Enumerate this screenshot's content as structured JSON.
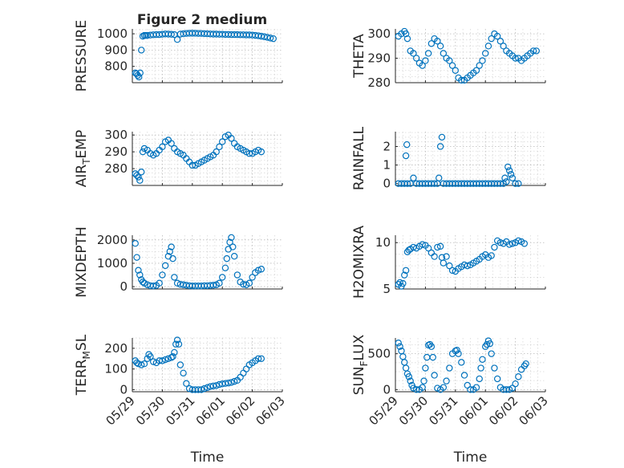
{
  "figure": {
    "title": "Figure 2 medium",
    "marker_color": "#0072bd",
    "axis_color": "#262626",
    "grid": true
  },
  "chart_data": [
    {
      "type": "scatter",
      "title": "Figure 2 medium",
      "ylabel": "PRESSURE",
      "xlabel": "",
      "xlim": [
        0,
        5
      ],
      "xticks": [
        0,
        1,
        2,
        3,
        4,
        5
      ],
      "xticklabels": [
        "05/29",
        "05/30",
        "05/31",
        "06/01",
        "06/02",
        "06/03"
      ],
      "ylim": [
        700,
        1030
      ],
      "yticks": [
        800,
        900,
        1000
      ],
      "yticklabels": [
        "800",
        "900",
        "1000"
      ],
      "series": [
        {
          "x": [
            0.1,
            0.14,
            0.18,
            0.22,
            0.26,
            0.3,
            0.35,
            0.4,
            0.45,
            0.5,
            0.6,
            0.7,
            0.8,
            0.9,
            1.0,
            1.1,
            1.2,
            1.3,
            1.4,
            1.5,
            1.6,
            1.7,
            1.8,
            1.9,
            2.0,
            2.1,
            2.2,
            2.3,
            2.4,
            2.5,
            2.6,
            2.7,
            2.8,
            2.9,
            3.0,
            3.1,
            3.2,
            3.3,
            3.4,
            3.5,
            3.6,
            3.7,
            3.8,
            3.9,
            4.0,
            4.1,
            4.2,
            4.3,
            4.4,
            4.5,
            4.6,
            4.7
          ],
          "y": [
            760,
            755,
            745,
            735,
            760,
            900,
            985,
            990,
            990,
            990,
            992,
            994,
            995,
            995,
            997,
            999,
            998,
            997,
            995,
            965,
            998,
            1000,
            1002,
            1003,
            1003,
            1003,
            1002,
            1002,
            1001,
            1000,
            999,
            998,
            998,
            997,
            997,
            996,
            996,
            995,
            995,
            995,
            994,
            994,
            993,
            993,
            992,
            990,
            988,
            985,
            982,
            978,
            974,
            970
          ]
        }
      ]
    },
    {
      "type": "scatter",
      "ylabel": "THETA",
      "xlabel": "",
      "xlim": [
        0,
        5
      ],
      "xticks": [
        0,
        1,
        2,
        3,
        4,
        5
      ],
      "xticklabels": [
        "05/29",
        "05/30",
        "05/31",
        "06/01",
        "06/02",
        "06/03"
      ],
      "ylim": [
        280,
        302
      ],
      "yticks": [
        280,
        290,
        300
      ],
      "yticklabels": [
        "280",
        "290",
        "300"
      ],
      "series": [
        {
          "x": [
            0.1,
            0.2,
            0.3,
            0.35,
            0.4,
            0.5,
            0.6,
            0.7,
            0.8,
            0.9,
            1.0,
            1.1,
            1.2,
            1.3,
            1.4,
            1.5,
            1.6,
            1.7,
            1.8,
            1.9,
            2.0,
            2.1,
            2.2,
            2.3,
            2.4,
            2.5,
            2.6,
            2.7,
            2.8,
            2.9,
            3.0,
            3.1,
            3.2,
            3.3,
            3.4,
            3.5,
            3.6,
            3.7,
            3.8,
            3.9,
            4.0,
            4.1,
            4.2,
            4.3,
            4.4,
            4.5,
            4.6,
            4.7
          ],
          "y": [
            299,
            300,
            301,
            300,
            298,
            293,
            292,
            290,
            288,
            287,
            289,
            292,
            296,
            298,
            297,
            295,
            292,
            290,
            289,
            287,
            285,
            282,
            281,
            281,
            282,
            283,
            284,
            285,
            287,
            289,
            292,
            295,
            298,
            300,
            299,
            297,
            295,
            293,
            292,
            291,
            290,
            290,
            289,
            290,
            291,
            292,
            293,
            293
          ]
        }
      ]
    },
    {
      "type": "scatter",
      "ylabel": "AIR_TEMP",
      "ylabel_parts": [
        "AIR",
        "T",
        "EMP"
      ],
      "xlabel": "",
      "xlim": [
        0,
        5
      ],
      "xticks": [
        0,
        1,
        2,
        3,
        4,
        5
      ],
      "xticklabels": [
        "05/29",
        "05/30",
        "05/31",
        "06/01",
        "06/02",
        "06/03"
      ],
      "ylim": [
        270,
        302
      ],
      "yticks": [
        280,
        290,
        300
      ],
      "yticklabels": [
        "280",
        "290",
        "300"
      ],
      "series": [
        {
          "x": [
            0.1,
            0.15,
            0.2,
            0.25,
            0.3,
            0.35,
            0.4,
            0.5,
            0.6,
            0.7,
            0.8,
            0.9,
            1.0,
            1.1,
            1.2,
            1.3,
            1.4,
            1.5,
            1.6,
            1.7,
            1.8,
            1.9,
            2.0,
            2.1,
            2.2,
            2.3,
            2.4,
            2.5,
            2.6,
            2.7,
            2.8,
            2.9,
            3.0,
            3.1,
            3.2,
            3.3,
            3.4,
            3.5,
            3.6,
            3.7,
            3.8,
            3.9,
            4.0,
            4.1,
            4.2,
            4.3
          ],
          "y": [
            277,
            276,
            275,
            273,
            278,
            290,
            292,
            291,
            289,
            288,
            289,
            291,
            293,
            296,
            297,
            295,
            292,
            290,
            289,
            288,
            286,
            284,
            282,
            282,
            283,
            284,
            285,
            286,
            287,
            288,
            290,
            293,
            296,
            299,
            300,
            298,
            295,
            293,
            292,
            291,
            290,
            289,
            289,
            290,
            291,
            290
          ]
        }
      ]
    },
    {
      "type": "scatter",
      "ylabel": "RAINFALL",
      "xlabel": "",
      "xlim": [
        0,
        5
      ],
      "xticks": [
        0,
        1,
        2,
        3,
        4,
        5
      ],
      "xticklabels": [
        "05/29",
        "05/30",
        "05/31",
        "06/01",
        "06/02",
        "06/03"
      ],
      "ylim": [
        -0.1,
        2.8
      ],
      "yticks": [
        0,
        1,
        2
      ],
      "yticklabels": [
        "0",
        "1",
        "2"
      ],
      "series": [
        {
          "x": [
            0.1,
            0.2,
            0.3,
            0.35,
            0.38,
            0.4,
            0.5,
            0.6,
            0.7,
            0.8,
            0.9,
            1.0,
            1.1,
            1.2,
            1.3,
            1.4,
            1.45,
            1.5,
            1.55,
            1.6,
            1.7,
            1.8,
            1.9,
            2.0,
            2.1,
            2.2,
            2.3,
            2.4,
            2.5,
            2.6,
            2.7,
            2.8,
            2.9,
            3.0,
            3.1,
            3.2,
            3.3,
            3.4,
            3.5,
            3.6,
            3.65,
            3.7,
            3.75,
            3.8,
            3.85,
            3.9,
            4.0,
            4.1
          ],
          "y": [
            0,
            0,
            0,
            1.5,
            2.1,
            0,
            0,
            0.3,
            0,
            0,
            0,
            0,
            0,
            0,
            0,
            0,
            0.3,
            2.0,
            2.5,
            0,
            0,
            0,
            0,
            0,
            0,
            0,
            0,
            0,
            0,
            0,
            0,
            0,
            0,
            0,
            0,
            0,
            0,
            0,
            0,
            0,
            0.3,
            0.1,
            0.9,
            0.7,
            0.5,
            0.3,
            0,
            0
          ]
        }
      ]
    },
    {
      "type": "scatter",
      "ylabel": "MIXDEPTH",
      "xlabel": "",
      "xlim": [
        0,
        5
      ],
      "xticks": [
        0,
        1,
        2,
        3,
        4,
        5
      ],
      "xticklabels": [
        "05/29",
        "05/30",
        "05/31",
        "06/01",
        "06/02",
        "06/03"
      ],
      "ylim": [
        -100,
        2200
      ],
      "yticks": [
        0,
        1000,
        2000
      ],
      "yticklabels": [
        "0",
        "1000",
        "2000"
      ],
      "series": [
        {
          "x": [
            0.1,
            0.15,
            0.2,
            0.25,
            0.3,
            0.35,
            0.4,
            0.5,
            0.6,
            0.7,
            0.8,
            0.9,
            1.0,
            1.1,
            1.2,
            1.25,
            1.3,
            1.35,
            1.4,
            1.5,
            1.6,
            1.7,
            1.8,
            1.9,
            2.0,
            2.1,
            2.2,
            2.3,
            2.4,
            2.5,
            2.6,
            2.7,
            2.8,
            2.9,
            3.0,
            3.1,
            3.15,
            3.2,
            3.25,
            3.3,
            3.35,
            3.4,
            3.5,
            3.6,
            3.7,
            3.8,
            3.9,
            4.0,
            4.1,
            4.2,
            4.3
          ],
          "y": [
            1850,
            1250,
            700,
            500,
            300,
            200,
            150,
            80,
            40,
            30,
            50,
            150,
            500,
            900,
            1300,
            1500,
            1700,
            1200,
            400,
            150,
            100,
            80,
            60,
            40,
            30,
            30,
            30,
            30,
            40,
            40,
            50,
            60,
            80,
            150,
            400,
            800,
            1200,
            1600,
            1900,
            2100,
            1700,
            1300,
            500,
            200,
            100,
            80,
            150,
            400,
            600,
            700,
            750
          ]
        }
      ]
    },
    {
      "type": "scatter",
      "ylabel": "H2OMIXRA",
      "xlabel": "",
      "xlim": [
        0,
        5
      ],
      "xticks": [
        0,
        1,
        2,
        3,
        4,
        5
      ],
      "xticklabels": [
        "05/29",
        "05/30",
        "05/31",
        "06/01",
        "06/02",
        "06/03"
      ],
      "ylim": [
        5,
        10.8
      ],
      "yticks": [
        5,
        10
      ],
      "yticklabels": [
        "5",
        "10"
      ],
      "series": [
        {
          "x": [
            0.1,
            0.15,
            0.2,
            0.25,
            0.3,
            0.35,
            0.4,
            0.45,
            0.5,
            0.6,
            0.7,
            0.8,
            0.9,
            1.0,
            1.1,
            1.2,
            1.3,
            1.4,
            1.5,
            1.55,
            1.6,
            1.7,
            1.8,
            1.9,
            2.0,
            2.1,
            2.2,
            2.3,
            2.4,
            2.5,
            2.6,
            2.7,
            2.8,
            2.9,
            3.0,
            3.1,
            3.2,
            3.3,
            3.4,
            3.5,
            3.6,
            3.7,
            3.8,
            3.9,
            4.0,
            4.1,
            4.2,
            4.3
          ],
          "y": [
            5.5,
            5.7,
            5.3,
            5.6,
            6.5,
            7.0,
            9.0,
            9.2,
            9.3,
            9.5,
            9.4,
            9.6,
            9.8,
            9.7,
            9.4,
            8.9,
            8.5,
            9.5,
            9.6,
            8.4,
            7.8,
            8.5,
            7.5,
            7.0,
            6.9,
            7.2,
            7.4,
            7.6,
            7.5,
            7.6,
            7.8,
            8.0,
            8.2,
            8.5,
            8.7,
            8.4,
            8.6,
            9.5,
            10.2,
            10.0,
            9.9,
            10.1,
            9.8,
            9.9,
            10.0,
            10.2,
            10.1,
            9.9
          ]
        }
      ]
    },
    {
      "type": "scatter",
      "ylabel": "TERR_MSL",
      "ylabel_parts": [
        "TERR",
        "M",
        "SL"
      ],
      "xlabel": "Time",
      "xlim": [
        0,
        5
      ],
      "xticks": [
        0,
        1,
        2,
        3,
        4,
        5
      ],
      "xticklabels": [
        "05/29",
        "05/30",
        "05/31",
        "06/01",
        "06/02",
        "06/03"
      ],
      "ylim": [
        -10,
        250
      ],
      "yticks": [
        0,
        100,
        200
      ],
      "yticklabels": [
        "0",
        "100",
        "200"
      ],
      "series": [
        {
          "x": [
            0.1,
            0.15,
            0.2,
            0.3,
            0.4,
            0.5,
            0.55,
            0.6,
            0.7,
            0.8,
            0.9,
            1.0,
            1.1,
            1.2,
            1.3,
            1.35,
            1.4,
            1.45,
            1.5,
            1.55,
            1.6,
            1.7,
            1.8,
            1.9,
            2.0,
            2.1,
            2.2,
            2.3,
            2.4,
            2.5,
            2.6,
            2.7,
            2.8,
            2.9,
            3.0,
            3.1,
            3.2,
            3.3,
            3.4,
            3.5,
            3.6,
            3.7,
            3.8,
            3.9,
            4.0,
            4.1,
            4.2,
            4.3
          ],
          "y": [
            140,
            130,
            125,
            120,
            125,
            150,
            170,
            160,
            135,
            130,
            140,
            140,
            145,
            150,
            155,
            160,
            180,
            220,
            240,
            220,
            120,
            80,
            30,
            5,
            0,
            0,
            0,
            0,
            5,
            10,
            15,
            18,
            20,
            25,
            28,
            30,
            32,
            35,
            40,
            45,
            60,
            80,
            100,
            120,
            130,
            140,
            150,
            150
          ]
        }
      ]
    },
    {
      "type": "scatter",
      "ylabel": "SUN_FLUX",
      "ylabel_parts": [
        "SUN",
        "F",
        "LUX"
      ],
      "xlabel": "Time",
      "xlim": [
        0,
        5
      ],
      "xticks": [
        0,
        1,
        2,
        3,
        4,
        5
      ],
      "xticklabels": [
        "05/29",
        "05/30",
        "05/31",
        "06/01",
        "06/02",
        "06/03"
      ],
      "ylim": [
        -30,
        720
      ],
      "yticks": [
        0,
        500
      ],
      "yticklabels": [
        "0",
        "500"
      ],
      "series": [
        {
          "x": [
            0.1,
            0.15,
            0.2,
            0.25,
            0.3,
            0.35,
            0.4,
            0.45,
            0.5,
            0.55,
            0.6,
            0.7,
            0.8,
            0.9,
            0.95,
            1.0,
            1.05,
            1.1,
            1.15,
            1.2,
            1.25,
            1.3,
            1.4,
            1.5,
            1.6,
            1.7,
            1.8,
            1.9,
            2.0,
            2.05,
            2.1,
            2.2,
            2.3,
            2.4,
            2.5,
            2.6,
            2.7,
            2.8,
            2.85,
            2.9,
            3.0,
            3.05,
            3.1,
            3.15,
            3.2,
            3.3,
            3.4,
            3.5,
            3.6,
            3.7,
            3.8,
            3.9,
            4.0,
            4.1,
            4.2,
            4.3,
            4.35
          ],
          "y": [
            650,
            600,
            540,
            460,
            380,
            300,
            220,
            180,
            120,
            60,
            20,
            0,
            0,
            30,
            120,
            300,
            450,
            620,
            630,
            600,
            450,
            200,
            20,
            0,
            30,
            120,
            300,
            500,
            540,
            550,
            500,
            380,
            200,
            60,
            0,
            0,
            30,
            150,
            300,
            420,
            600,
            630,
            680,
            640,
            500,
            300,
            150,
            30,
            0,
            0,
            0,
            20,
            80,
            180,
            280,
            330,
            360
          ]
        }
      ]
    }
  ]
}
